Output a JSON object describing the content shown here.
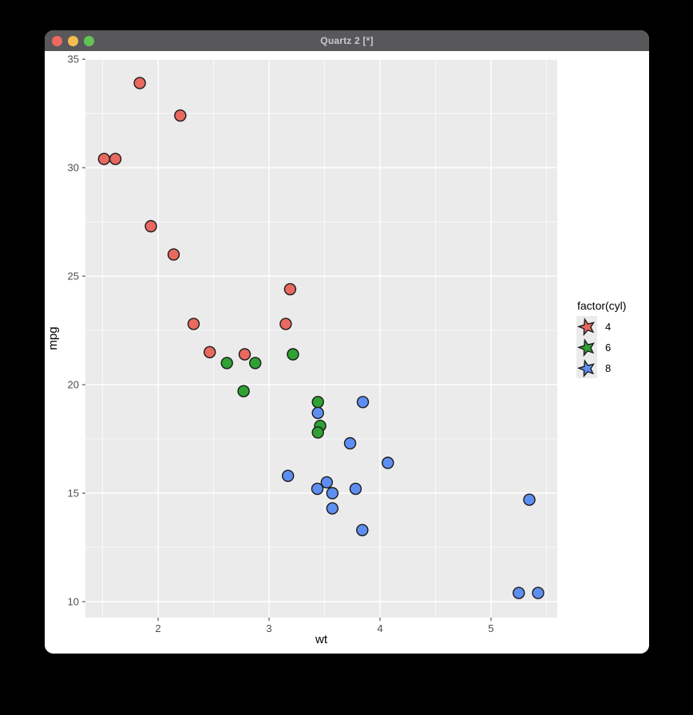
{
  "window": {
    "title": "Quartz 2 [*]",
    "titlebar_color": "#58585A",
    "traffic_lights": {
      "close_color": "#EE6A5F",
      "minimize_color": "#F5BD4F",
      "zoom_color": "#61C354"
    }
  },
  "chart_data": {
    "type": "scatter",
    "title": "",
    "xlabel": "wt",
    "ylabel": "mpg",
    "xlim": [
      1.345,
      5.597
    ],
    "ylim": [
      9.265,
      35.005
    ],
    "x_ticks": [
      2,
      3,
      4,
      5
    ],
    "y_ticks": [
      10,
      15,
      20,
      25,
      30,
      35
    ],
    "x_minor_ticks": [
      1.5,
      2.5,
      3.5,
      4.5,
      5.5
    ],
    "y_minor_ticks": [
      12.5,
      17.5,
      22.5,
      27.5,
      32.5
    ],
    "grid": true,
    "panel_background": "#EBEBEB",
    "grid_color": "#FFFFFF",
    "tick_color": "#333333",
    "tick_label_color": "#4D4D4D",
    "point_shape": "circle",
    "point_outline": "#1A1A1A",
    "legend": {
      "title": "factor(cyl)",
      "position": "right",
      "key_glyph": "star",
      "key_background": "#EBEBEB",
      "entries": [
        {
          "label": "4",
          "color": "#E8695F"
        },
        {
          "label": "6",
          "color": "#2FA233"
        },
        {
          "label": "8",
          "color": "#5E8FF0"
        }
      ]
    },
    "series": [
      {
        "name": "4",
        "color": "#E8695F",
        "points": [
          [
            2.32,
            22.8
          ],
          [
            3.19,
            24.4
          ],
          [
            3.15,
            22.8
          ],
          [
            2.2,
            32.4
          ],
          [
            1.615,
            30.4
          ],
          [
            1.835,
            33.9
          ],
          [
            2.465,
            21.5
          ],
          [
            1.935,
            27.3
          ],
          [
            2.14,
            26.0
          ],
          [
            1.513,
            30.4
          ],
          [
            2.78,
            21.4
          ]
        ]
      },
      {
        "name": "6",
        "color": "#2FA233",
        "points": [
          [
            2.62,
            21.0
          ],
          [
            2.875,
            21.0
          ],
          [
            3.215,
            21.4
          ],
          [
            3.46,
            18.1
          ],
          [
            3.44,
            19.2
          ],
          [
            3.44,
            17.8
          ],
          [
            2.77,
            19.7
          ]
        ]
      },
      {
        "name": "8",
        "color": "#5E8FF0",
        "points": [
          [
            3.44,
            18.7
          ],
          [
            3.57,
            14.3
          ],
          [
            4.07,
            16.4
          ],
          [
            3.73,
            17.3
          ],
          [
            3.78,
            15.2
          ],
          [
            5.25,
            10.4
          ],
          [
            5.424,
            10.4
          ],
          [
            5.345,
            14.7
          ],
          [
            3.52,
            15.5
          ],
          [
            3.435,
            15.2
          ],
          [
            3.84,
            13.3
          ],
          [
            3.845,
            19.2
          ],
          [
            3.17,
            15.8
          ],
          [
            3.57,
            15.0
          ]
        ]
      }
    ]
  }
}
